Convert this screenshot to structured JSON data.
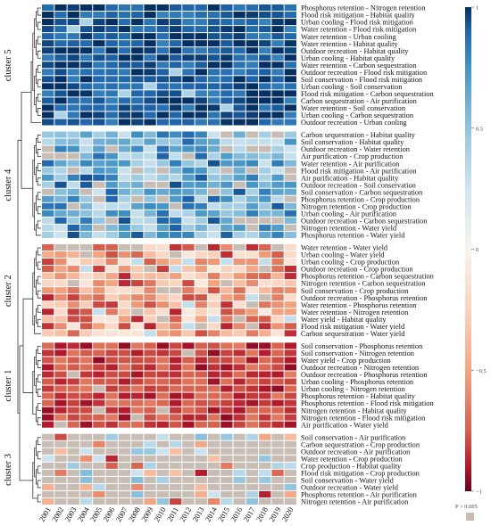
{
  "chart_data": {
    "type": "heatmap",
    "years": [
      "2001",
      "2002",
      "2003",
      "2004",
      "2005",
      "2006",
      "2007",
      "2008",
      "2009",
      "2010",
      "2011",
      "2012",
      "2013",
      "2014",
      "2015",
      "2016",
      "2017",
      "2018",
      "2019",
      "2020"
    ],
    "colorbar": {
      "min": -1,
      "max": 1,
      "ticks": [
        1,
        0.5,
        0,
        -0.5,
        -1
      ],
      "ns_label": "P > 0.005"
    },
    "colors": {
      "neg": "#67001f",
      "mid": "#f7f5ee",
      "pos": "#053061",
      "ns": "#c8bdb5",
      "grid": "#ffffff"
    },
    "clusters": [
      {
        "name": "cluster 5",
        "base": 0.88,
        "rows": [
          "Phosphorus retention - Nitrogen retention",
          "Flood risk mitigation - Habitat quality",
          "Urban cooling - Flood risk mitigation",
          "Water retention - Flood risk mitigation",
          "Water retention - Urban cooling",
          "Water retention - Habitat quality",
          "Outdoor recreation - Habitat quality",
          "Urban cooling - Habitat quality",
          "Water retention - Carbon sequestration",
          "Outdoor recreation - Flood risk mitigation",
          "Soil conservation - Flood risk mitigation",
          "Urban cooling - Soil conservation",
          "Flood risk mitigation - Carbon sequestration",
          "Carbon sequestration - Air purification",
          "Water retention - Soil conservation",
          "Urban cooling - Carbon sequestration",
          "Outdoor recreation - Urban cooling"
        ]
      },
      {
        "name": "cluster 4",
        "base": 0.58,
        "rows": [
          "Carbon sequestration - Habitat quality",
          "Soil conservation - Habitat quality",
          "Outdoor recreation - Water retention",
          "Air purification - Crop production",
          "Water retention - Air purification",
          "Flood risk mitigation - Air purification",
          "Air purification - Habitat quality",
          "Outdoor recreation - Soil conservation",
          "Soil conservation - Carbon sequestration",
          "Phosphorus retention - Crop production",
          "Nitrogen retention - Crop production",
          "Urban cooling - Air purification",
          "Outdoor recreation - Carbon sequestration",
          "Nitrogen retention - Water yield",
          "Phosphorus retention - Water yield"
        ]
      },
      {
        "name": "cluster 2",
        "base": -0.48,
        "rows": [
          "Water retention - Water yield",
          "Urban cooling - Water yield",
          "Urban cooling - Crop production",
          "Outdoor recreation - Crop production",
          "Phosphorus retention - Carbon sequestration",
          "Nitrogen retention - Carbon sequestration",
          "Soil conservation - Crop production",
          "Outdoor recreation - Phosphorus retention",
          "Water retention - Phosphorus retention",
          "Water retention - Nitrogen retention",
          "Water yield - Habitat quality",
          "Flood risk mitigation - Water yield",
          "Carbon sequestration - Water yield"
        ]
      },
      {
        "name": "cluster 1",
        "base": -0.86,
        "rows": [
          "Soil conservation - Phosphorus retention",
          "Soil conservation - Nitrogen retention",
          "Water yield - Crop production",
          "Outdoor recreation - Nitrogen retention",
          "Outdoor recreation - Phosphorus retention",
          "Urban cooling - Phosphorus retention",
          "Urban cooling - Nitrogen retention",
          "Phosphorus retention - Habitat quality",
          "Phosphorus retention - Flood risk mitigation",
          "Nitrogen retention - Habitat quality",
          "Nitrogen retention - Flood risk mitigation",
          "Air purification - Water yield"
        ]
      },
      {
        "name": "cluster 3",
        "base": 0,
        "rows": [
          "Soil conservation - Air purification",
          "Carbon sequestration - Crop production",
          "Outdoor recreation - Air purification",
          "Water retention - Crop production",
          "Crop production - Habitat quality",
          "Flood risk mitigation - Crop production",
          "Soil conservation - Water yield",
          "Outdoor recreation - Water yield",
          "Phosphorus retention - Air purification",
          "Nitrogen retention - Air purification"
        ]
      }
    ]
  }
}
